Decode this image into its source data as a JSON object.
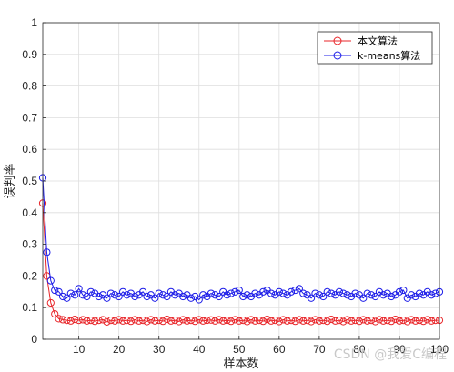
{
  "watermark": "CSDN @我爱C编程",
  "chart_data": {
    "type": "line",
    "xlabel": "样本数",
    "ylabel": "误判率",
    "xlim": [
      1,
      100
    ],
    "ylim": [
      0,
      1
    ],
    "xticks": [
      10,
      20,
      30,
      40,
      50,
      60,
      70,
      80,
      90,
      100
    ],
    "yticks": [
      0,
      0.1,
      0.2,
      0.3,
      0.4,
      0.5,
      0.6,
      0.7,
      0.8,
      0.9,
      1
    ],
    "ytick_labels": [
      "0",
      "0.1",
      "0.2",
      "0.3",
      "0.4",
      "0.5",
      "0.6",
      "0.7",
      "0.8",
      "0.9",
      "1"
    ],
    "grid": true,
    "legend_position": "top-right",
    "marker": "circle",
    "series": [
      {
        "name": "本文算法",
        "color": "#e8262a",
        "values": [
          0.43,
          0.2,
          0.115,
          0.08,
          0.065,
          0.062,
          0.06,
          0.058,
          0.063,
          0.06,
          0.062,
          0.058,
          0.06,
          0.057,
          0.06,
          0.062,
          0.055,
          0.06,
          0.058,
          0.062,
          0.058,
          0.06,
          0.057,
          0.062,
          0.058,
          0.06,
          0.056,
          0.062,
          0.058,
          0.06,
          0.057,
          0.063,
          0.058,
          0.06,
          0.056,
          0.062,
          0.058,
          0.06,
          0.057,
          0.062,
          0.058,
          0.06,
          0.061,
          0.058,
          0.062,
          0.058,
          0.06,
          0.057,
          0.062,
          0.058,
          0.06,
          0.056,
          0.062,
          0.058,
          0.06,
          0.057,
          0.063,
          0.058,
          0.06,
          0.056,
          0.062,
          0.058,
          0.06,
          0.057,
          0.062,
          0.058,
          0.06,
          0.056,
          0.062,
          0.058,
          0.06,
          0.057,
          0.063,
          0.058,
          0.06,
          0.056,
          0.062,
          0.058,
          0.06,
          0.057,
          0.062,
          0.058,
          0.06,
          0.056,
          0.062,
          0.058,
          0.06,
          0.057,
          0.063,
          0.058,
          0.06,
          0.056,
          0.062,
          0.058,
          0.06,
          0.057,
          0.062,
          0.058,
          0.06,
          0.06
        ]
      },
      {
        "name": "k-means算法",
        "color": "#1c1ce8",
        "values": [
          0.51,
          0.275,
          0.185,
          0.155,
          0.15,
          0.135,
          0.13,
          0.145,
          0.14,
          0.16,
          0.14,
          0.135,
          0.15,
          0.145,
          0.135,
          0.14,
          0.13,
          0.145,
          0.14,
          0.135,
          0.15,
          0.14,
          0.145,
          0.135,
          0.14,
          0.15,
          0.135,
          0.14,
          0.13,
          0.145,
          0.14,
          0.135,
          0.15,
          0.14,
          0.145,
          0.135,
          0.14,
          0.13,
          0.135,
          0.125,
          0.14,
          0.135,
          0.145,
          0.14,
          0.135,
          0.15,
          0.14,
          0.145,
          0.15,
          0.155,
          0.135,
          0.14,
          0.135,
          0.145,
          0.14,
          0.15,
          0.155,
          0.145,
          0.14,
          0.15,
          0.145,
          0.14,
          0.15,
          0.155,
          0.16,
          0.145,
          0.14,
          0.13,
          0.145,
          0.14,
          0.135,
          0.15,
          0.145,
          0.14,
          0.15,
          0.145,
          0.14,
          0.135,
          0.145,
          0.14,
          0.13,
          0.145,
          0.14,
          0.135,
          0.15,
          0.14,
          0.145,
          0.135,
          0.14,
          0.15,
          0.155,
          0.13,
          0.14,
          0.135,
          0.145,
          0.14,
          0.15,
          0.14,
          0.145,
          0.15
        ]
      }
    ]
  }
}
